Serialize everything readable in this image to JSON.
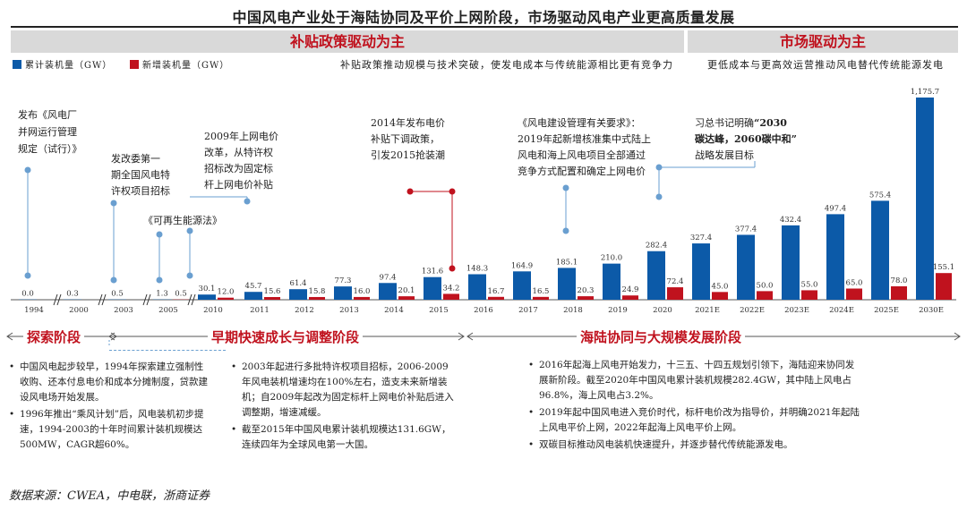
{
  "title": "中国风电产业处于海陆协同及平价上网阶段，市场驱动风电产业更高质量发展",
  "banners": {
    "left": "补贴政策驱动为主",
    "right": "市场驱动为主"
  },
  "legend": {
    "cumulative": "累计装机量（GW）",
    "new": "新增装机量（GW）"
  },
  "desc_left": "补贴政策推动规模与技术突破，使发电成本与传统能源相比更有竞争力",
  "desc_right": "更低成本与更高效运营推动风电替代传统能源发电",
  "colors": {
    "cumulative": "#0c5aa8",
    "new": "#c0121e",
    "accent": "#c0121e",
    "banner_bg": "#d9d9d9",
    "marker": "#6a9fd0"
  },
  "annotations": {
    "a1": "发布《风电厂并网运行管理规定（试行）》",
    "a2": "发改委第一期全国风电特许权项目招标",
    "a3": "《可再生能源法》",
    "a4": "2009年上网电价改革，从特许权招标改为固定标杆上网电价补贴",
    "a5": "2014年发布电价补贴下调政策，引发2015抢装潮",
    "a6": "《风电建设管理有关要求》：2019年起新增核准集中式陆上风电和海上风电项目全部通过竞争方式配置和确定上网电价",
    "a7_plain": "习总书记明确",
    "a7_bold": "“2030碳达峰，2060碳中和”",
    "a7_tail": "战略发展目标"
  },
  "stages": {
    "s1": "探索阶段",
    "s2": "早期快速成长与调整阶段",
    "s3": "海陆协同与大规模发展阶段"
  },
  "bullets": {
    "col1": [
      "中国风电起步较早，1994年探索建立强制性收购、还本付息电价和成本分摊制度，贷款建设风电场开始发展。",
      "1996年推出“乘风计划”后，风电装机初步提速，1994-2003的十年时间累计装机规模达500MW，CAGR超60%。"
    ],
    "col2": [
      "2003年起进行多批特许权项目招标，2006-2009年风电装机增速均在100%左右，造支未来新增装机；自2009年起改为固定标杆上网电价补贴后进入调整期，增速减缓。",
      "截至2015年中国风电累计装机规模达131.6GW，连续四年为全球风电第一大国。"
    ],
    "col3": [
      "2016年起海上风电开始发力，十三五、十四五规划引领下，海陆迎来协同发展新阶段。截至2020年中国风电累计装机规模282.4GW，其中陆上风电占96.8%，海上风电占3.2%。",
      "2019年起中国风电进入竞价时代，标杆电价改为指导价，并明确2021年起陆上风电平价上网，2022年起海上风电平价上网。",
      "双碳目标推动风电装机快速提升，并逐步替代传统能源发电。"
    ]
  },
  "source": "数据来源：CWEA，中电联，浙商证券",
  "chart_data": {
    "type": "bar",
    "categories": [
      "1994",
      "2000",
      "2003",
      "2005",
      "2010",
      "2011",
      "2012",
      "2013",
      "2014",
      "2015",
      "2016",
      "2017",
      "2018",
      "2019",
      "2020",
      "2021E",
      "2022E",
      "2023E",
      "2024E",
      "2025E",
      "2030E"
    ],
    "series": [
      {
        "name": "累计装机量（GW）",
        "values": [
          0.0,
          0.3,
          0.5,
          1.3,
          30.1,
          45.7,
          61.4,
          77.3,
          97.4,
          131.6,
          148.3,
          164.9,
          185.1,
          210.0,
          282.4,
          327.4,
          377.4,
          432.4,
          497.4,
          575.4,
          1175.7
        ],
        "labels": [
          "0.0",
          "0.3",
          "0.5",
          "1.3",
          "30.1",
          "45.7",
          "61.4",
          "77.3",
          "97.4",
          "131.6",
          "148.3",
          "164.9",
          "185.1",
          "210.0",
          "282.4",
          "327.4",
          "377.4",
          "432.4",
          "497.4",
          "575.4",
          "1,175.7"
        ]
      },
      {
        "name": "新增装机量（GW）",
        "values": [
          null,
          null,
          null,
          0.5,
          12.0,
          15.6,
          15.8,
          16.0,
          20.1,
          34.2,
          16.7,
          16.5,
          20.3,
          24.9,
          72.4,
          45.0,
          50.0,
          55.0,
          65.0,
          78.0,
          155.1
        ],
        "labels": [
          "",
          "",
          "",
          "0.5",
          "12.0",
          "15.6",
          "15.8",
          "16.0",
          "20.1",
          "34.2",
          "16.7",
          "16.5",
          "20.3",
          "24.9",
          "72.4",
          "45.0",
          "50.0",
          "55.0",
          "65.0",
          "78.0",
          "155.1"
        ]
      }
    ],
    "ylim": [
      0,
      1200
    ]
  }
}
